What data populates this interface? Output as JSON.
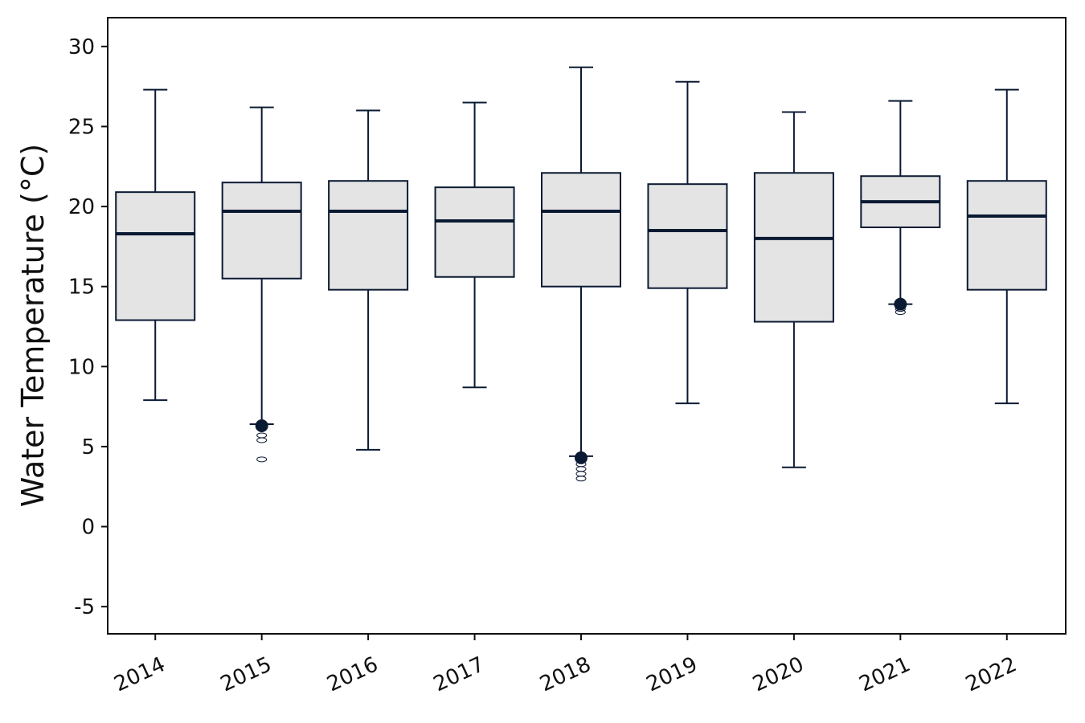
{
  "chart_data": {
    "type": "box",
    "title": "",
    "xlabel": "",
    "ylabel": "Water Temperature (°C)",
    "ylim": [
      -6.7,
      31.8
    ],
    "yticks": [
      -5,
      0,
      5,
      10,
      15,
      20,
      25,
      30
    ],
    "grid": false,
    "legend": "none",
    "colors": {
      "box_fill": "#e4e4e4",
      "line": "#0b1a33"
    },
    "categories": [
      "2014",
      "2015",
      "2016",
      "2017",
      "2018",
      "2019",
      "2020",
      "2021",
      "2022"
    ],
    "boxes": [
      {
        "category": "2014",
        "whisker_low": 7.9,
        "q1": 12.9,
        "median": 18.3,
        "q3": 20.9,
        "whisker_high": 27.3,
        "outliers": []
      },
      {
        "category": "2015",
        "whisker_low": 6.4,
        "q1": 15.5,
        "median": 19.7,
        "q3": 21.5,
        "whisker_high": 26.2,
        "outliers": [
          6.3,
          5.7,
          5.4,
          4.2
        ]
      },
      {
        "category": "2016",
        "whisker_low": 4.8,
        "q1": 14.8,
        "median": 19.7,
        "q3": 21.6,
        "whisker_high": 26.0,
        "outliers": []
      },
      {
        "category": "2017",
        "whisker_low": 8.7,
        "q1": 15.6,
        "median": 19.1,
        "q3": 21.2,
        "whisker_high": 26.5,
        "outliers": []
      },
      {
        "category": "2018",
        "whisker_low": 4.4,
        "q1": 15.0,
        "median": 19.7,
        "q3": 22.1,
        "whisker_high": 28.7,
        "outliers": [
          4.3,
          3.9,
          3.6,
          3.3,
          3.0
        ]
      },
      {
        "category": "2019",
        "whisker_low": 7.7,
        "q1": 14.9,
        "median": 18.5,
        "q3": 21.4,
        "whisker_high": 27.8,
        "outliers": []
      },
      {
        "category": "2020",
        "whisker_low": 3.7,
        "q1": 12.8,
        "median": 18.0,
        "q3": 22.1,
        "whisker_high": 25.9,
        "outliers": []
      },
      {
        "category": "2021",
        "whisker_low": 13.9,
        "q1": 18.7,
        "median": 20.3,
        "q3": 21.9,
        "whisker_high": 26.6,
        "outliers": [
          13.9,
          13.6,
          13.4
        ]
      },
      {
        "category": "2022",
        "whisker_low": 7.7,
        "q1": 14.8,
        "median": 19.4,
        "q3": 21.6,
        "whisker_high": 27.3,
        "outliers": []
      }
    ]
  }
}
